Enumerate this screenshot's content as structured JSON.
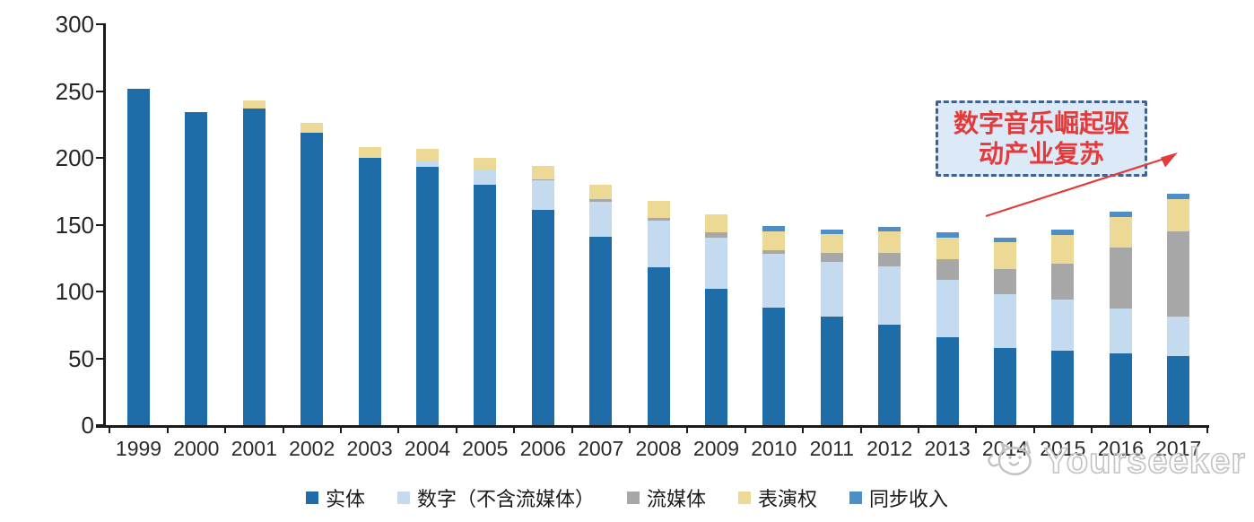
{
  "chart_data": {
    "type": "bar",
    "stacked": true,
    "title": "",
    "xlabel": "",
    "ylabel": "",
    "categories": [
      "1999",
      "2000",
      "2001",
      "2002",
      "2003",
      "2004",
      "2005",
      "2006",
      "2007",
      "2008",
      "2009",
      "2010",
      "2011",
      "2012",
      "2013",
      "2014",
      "2015",
      "2016",
      "2017"
    ],
    "series": [
      {
        "name": "实体",
        "color": "#1E6CA8",
        "values": [
          252,
          234,
          237,
          219,
          200,
          193,
          180,
          161,
          141,
          118,
          102,
          88,
          81,
          75,
          66,
          58,
          56,
          54,
          52
        ]
      },
      {
        "name": "数字（不含流媒体）",
        "color": "#C4DAEF",
        "values": [
          0,
          0,
          0,
          0,
          0,
          4,
          11,
          22,
          26,
          35,
          38,
          40,
          41,
          44,
          43,
          40,
          38,
          33,
          29
        ]
      },
      {
        "name": "流媒体",
        "color": "#A7A7A7",
        "values": [
          0,
          0,
          0,
          0,
          0,
          0,
          0,
          1,
          2,
          2,
          4,
          3,
          7,
          10,
          15,
          19,
          27,
          46,
          64
        ]
      },
      {
        "name": "表演权",
        "color": "#EBD995",
        "values": [
          0,
          0,
          6,
          7,
          8,
          10,
          9,
          10,
          11,
          13,
          14,
          14,
          14,
          16,
          16,
          20,
          21,
          23,
          24
        ]
      },
      {
        "name": "同步收入",
        "color": "#4C8FC8",
        "values": [
          0,
          0,
          0,
          0,
          0,
          0,
          0,
          0,
          0,
          0,
          0,
          4,
          3,
          3,
          4,
          3,
          4,
          4,
          4
        ]
      }
    ],
    "ylim": [
      0,
      300
    ],
    "y_ticks": [
      0,
      50,
      100,
      150,
      200,
      250,
      300
    ],
    "grid": false,
    "legend_position": "bottom"
  },
  "annotation": {
    "line1": "数字音乐崛起驱",
    "line2": "动产业复苏",
    "text_color": "#E23B3B",
    "box_fill": "#DCE9F7",
    "border_color": "#41618F",
    "arrow_color": "#E23B3B"
  },
  "watermark": {
    "text": "Yourseeker",
    "color": "#C2C2C2"
  }
}
